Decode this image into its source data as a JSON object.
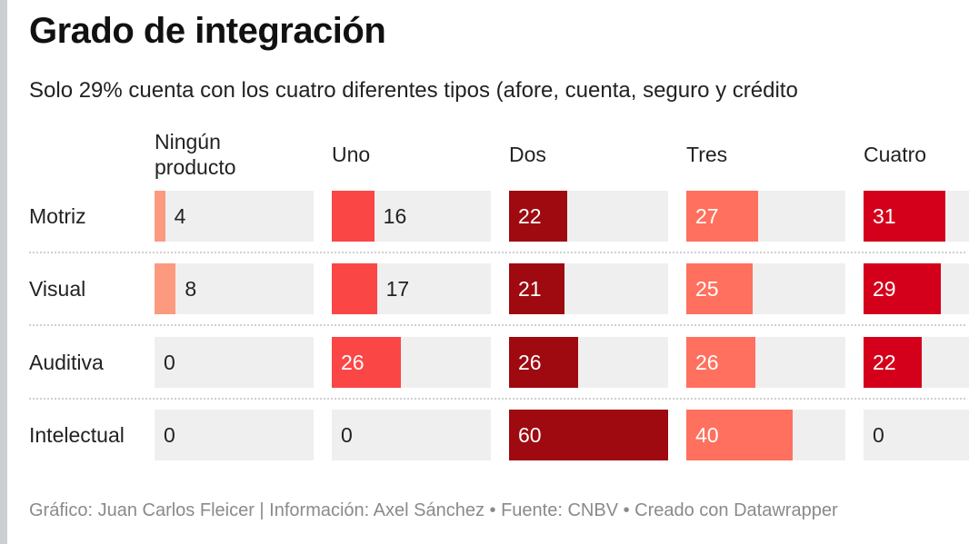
{
  "title": "Grado de integración",
  "subtitle": "Solo 29% cuenta con los cuatro diferentes tipos (afore, cuenta, seguro y crédito",
  "footer": "Gráfico: Juan Carlos Fleicer | Información: Axel Sánchez • Fuente: CNBV • Creado con Datawrapper",
  "chart_data": {
    "type": "table",
    "columns": [
      "Ningún producto",
      "Uno",
      "Dos",
      "Tres",
      "Cuatro"
    ],
    "column_colors": [
      "#fc9a80",
      "#fb4646",
      "#9e0a10",
      "#ff705e",
      "#d4001b"
    ],
    "bar_max": 60,
    "rows": [
      {
        "label": "Motriz",
        "values": [
          4,
          16,
          22,
          27,
          31
        ]
      },
      {
        "label": "Visual",
        "values": [
          8,
          17,
          21,
          25,
          29
        ]
      },
      {
        "label": "Auditiva",
        "values": [
          0,
          26,
          26,
          26,
          22
        ]
      },
      {
        "label": "Intelectual",
        "values": [
          0,
          0,
          60,
          40,
          0
        ]
      }
    ]
  }
}
